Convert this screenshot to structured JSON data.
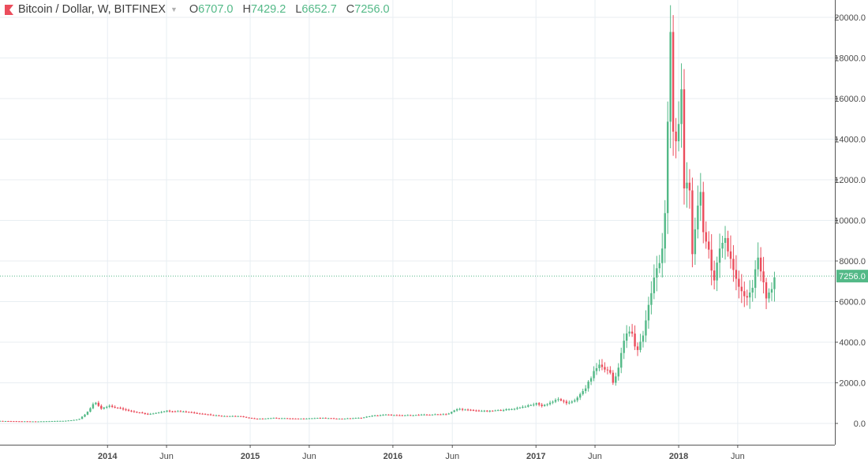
{
  "legend": {
    "symbol": "Bitcoin / Dollar, W, BITFINEX",
    "open_label": "O",
    "open_value": "6707.0",
    "high_label": "H",
    "high_value": "7429.2",
    "low_label": "L",
    "low_value": "6652.7",
    "close_label": "C",
    "close_value": "7256.0"
  },
  "colors": {
    "up": "#53b987",
    "down": "#eb4d5c",
    "grid": "#e8eef2",
    "axis_text": "#4a4a4a",
    "price_line": "#53b987"
  },
  "chart_data": {
    "type": "candlestick",
    "interval": "W",
    "title": "Bitcoin / Dollar, W, BITFINEX",
    "ylim": [
      -1000,
      20200
    ],
    "y_ticks": [
      "20000.0",
      "18000.0",
      "16000.0",
      "14000.0",
      "12000.0",
      "10000.0",
      "8000.0",
      "6000.0",
      "4000.0",
      "2000.0",
      "0.0"
    ],
    "x_ticks": [
      {
        "date": "2014-01-01",
        "label": "2014",
        "bold": true
      },
      {
        "date": "2014-06-01",
        "label": "Jun",
        "bold": false
      },
      {
        "date": "2015-01-01",
        "label": "2015",
        "bold": true
      },
      {
        "date": "2015-06-01",
        "label": "Jun",
        "bold": false
      },
      {
        "date": "2016-01-01",
        "label": "2016",
        "bold": true
      },
      {
        "date": "2016-06-01",
        "label": "Jun",
        "bold": false
      },
      {
        "date": "2017-01-01",
        "label": "2017",
        "bold": true
      },
      {
        "date": "2017-06-01",
        "label": "Jun",
        "bold": false
      },
      {
        "date": "2018-01-01",
        "label": "2018",
        "bold": true
      },
      {
        "date": "2018-06-01",
        "label": "Jun",
        "bold": false
      }
    ],
    "x_range": [
      "2013-04-01",
      "2018-12-10"
    ],
    "last_price": 7256.0,
    "last_price_label": "7256.0",
    "anchors": [
      [
        "2013-04-01",
        120
      ],
      [
        "2013-07-01",
        95
      ],
      [
        "2013-09-15",
        130
      ],
      [
        "2013-10-20",
        200
      ],
      [
        "2013-11-08",
        500
      ],
      [
        "2013-11-29",
        1050
      ],
      [
        "2013-12-15",
        720
      ],
      [
        "2014-01-05",
        850
      ],
      [
        "2014-02-10",
        700
      ],
      [
        "2014-03-15",
        560
      ],
      [
        "2014-04-15",
        450
      ],
      [
        "2014-06-01",
        620
      ],
      [
        "2014-07-15",
        590
      ],
      [
        "2014-09-01",
        470
      ],
      [
        "2014-10-15",
        370
      ],
      [
        "2014-12-01",
        360
      ],
      [
        "2015-01-15",
        220
      ],
      [
        "2015-03-01",
        270
      ],
      [
        "2015-05-01",
        230
      ],
      [
        "2015-07-01",
        270
      ],
      [
        "2015-08-20",
        230
      ],
      [
        "2015-10-15",
        280
      ],
      [
        "2015-11-05",
        370
      ],
      [
        "2015-12-15",
        430
      ],
      [
        "2016-01-15",
        390
      ],
      [
        "2016-03-15",
        420
      ],
      [
        "2016-05-20",
        460
      ],
      [
        "2016-06-15",
        720
      ],
      [
        "2016-07-15",
        650
      ],
      [
        "2016-09-01",
        600
      ],
      [
        "2016-11-01",
        710
      ],
      [
        "2016-12-20",
        900
      ],
      [
        "2017-01-05",
        1000
      ],
      [
        "2017-01-15",
        850
      ],
      [
        "2017-03-01",
        1200
      ],
      [
        "2017-03-20",
        970
      ],
      [
        "2017-04-15",
        1200
      ],
      [
        "2017-05-10",
        1800
      ],
      [
        "2017-05-25",
        2400
      ],
      [
        "2017-06-10",
        2900
      ],
      [
        "2017-07-10",
        2500
      ],
      [
        "2017-07-16",
        1950
      ],
      [
        "2017-08-01",
        2800
      ],
      [
        "2017-08-15",
        4200
      ],
      [
        "2017-09-01",
        4600
      ],
      [
        "2017-09-15",
        3500
      ],
      [
        "2017-10-01",
        4300
      ],
      [
        "2017-10-15",
        5700
      ],
      [
        "2017-11-01",
        7300
      ],
      [
        "2017-11-15",
        8000
      ],
      [
        "2017-11-26",
        9800
      ],
      [
        "2017-12-04",
        15000
      ],
      [
        "2017-12-11",
        19000
      ],
      [
        "2017-12-18",
        14000
      ],
      [
        "2017-12-28",
        13800
      ],
      [
        "2018-01-08",
        16200
      ],
      [
        "2018-01-15",
        11700
      ],
      [
        "2018-01-29",
        11800
      ],
      [
        "2018-02-05",
        8100
      ],
      [
        "2018-02-19",
        10500
      ],
      [
        "2018-02-26",
        11500
      ],
      [
        "2018-03-05",
        9600
      ],
      [
        "2018-03-19",
        8500
      ],
      [
        "2018-04-02",
        7000
      ],
      [
        "2018-04-16",
        8400
      ],
      [
        "2018-04-30",
        9400
      ],
      [
        "2018-05-07",
        8600
      ],
      [
        "2018-05-21",
        7500
      ],
      [
        "2018-06-11",
        6500
      ],
      [
        "2018-06-25",
        6200
      ],
      [
        "2018-07-09",
        6700
      ],
      [
        "2018-07-23",
        8200
      ],
      [
        "2018-08-06",
        7000
      ],
      [
        "2018-08-13",
        6300
      ],
      [
        "2018-08-27",
        6707
      ],
      [
        "2018-09-03",
        7256
      ]
    ]
  }
}
